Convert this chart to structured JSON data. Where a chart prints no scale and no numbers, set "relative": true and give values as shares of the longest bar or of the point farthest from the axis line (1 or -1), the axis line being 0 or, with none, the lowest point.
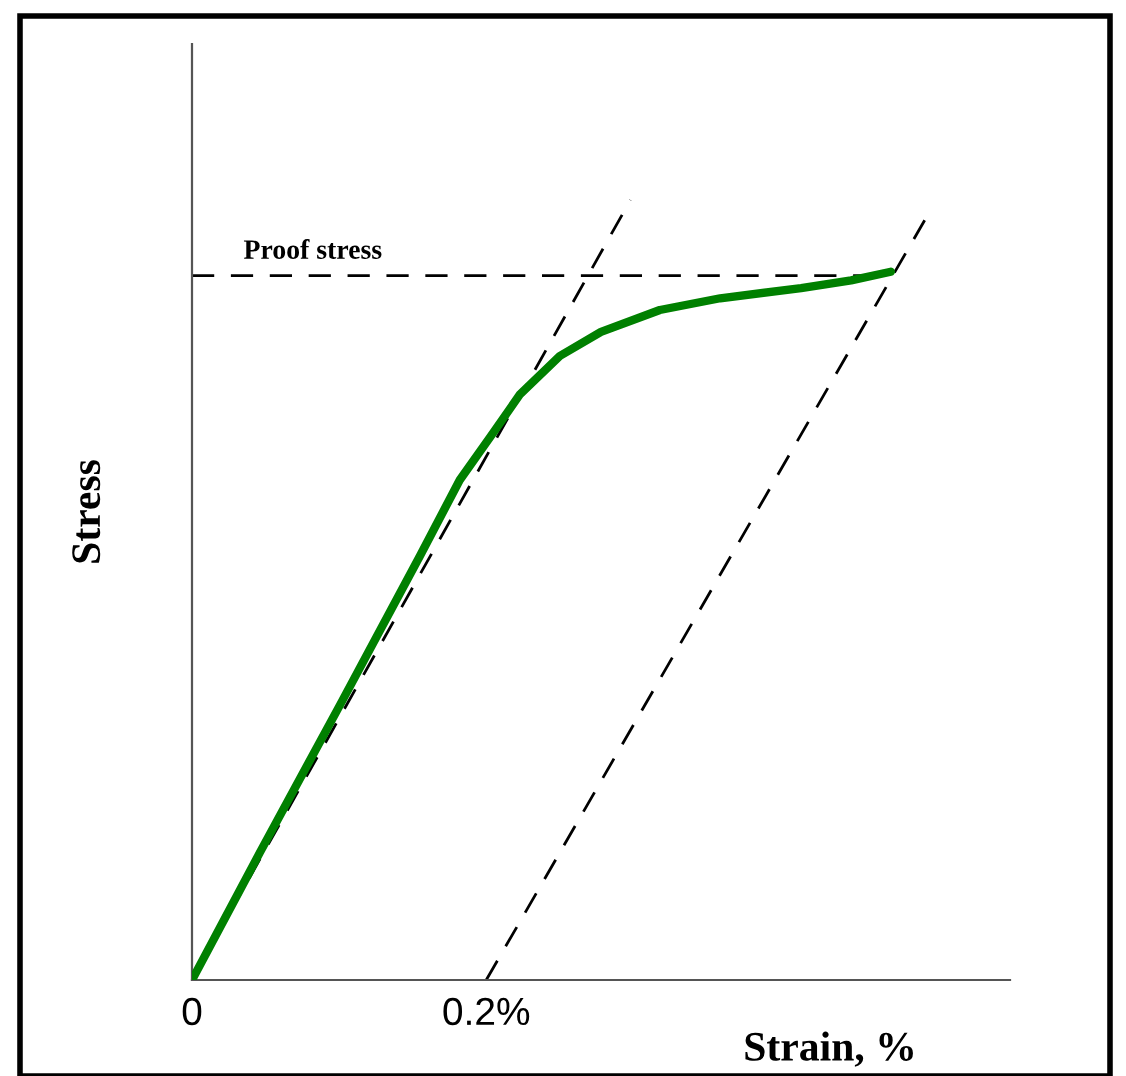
{
  "chart_data": {
    "type": "line",
    "relative": true,
    "xlabel": "Strain, %",
    "ylabel": "Stress",
    "xlim": [
      0,
      0.556
    ],
    "xticks": [
      0,
      {
        "value": 0.2,
        "label": "0.2%"
      }
    ],
    "series": [
      {
        "color": "#008000",
        "line_style": "solid",
        "x": [
          0,
          0.046,
          0.101,
          0.155,
          0.182,
          0.203,
          0.223,
          0.25,
          0.278,
          0.318,
          0.359,
          0.414,
          0.448,
          0.475
        ],
        "values": [
          0,
          0.163,
          0.354,
          0.544,
          0.641,
          0.697,
          0.751,
          0.8,
          0.831,
          0.859,
          0.874,
          0.887,
          0.897,
          0.908
        ]
      },
      {
        "color": "#000000",
        "line_style": "dashed",
        "x": [
          0,
          0.298
        ],
        "values": [
          0,
          1
        ]
      },
      {
        "color": "#000000",
        "line_style": "dashed",
        "x": [
          0.2,
          0.498
        ],
        "values": [
          0,
          0.974
        ]
      }
    ],
    "ref_lines": [
      {
        "axis": "y",
        "value": 0.903,
        "label": "Proof stress",
        "color": "#000000",
        "line_style": "dashed"
      }
    ],
    "marker": "none",
    "grid": false,
    "legend": false
  }
}
